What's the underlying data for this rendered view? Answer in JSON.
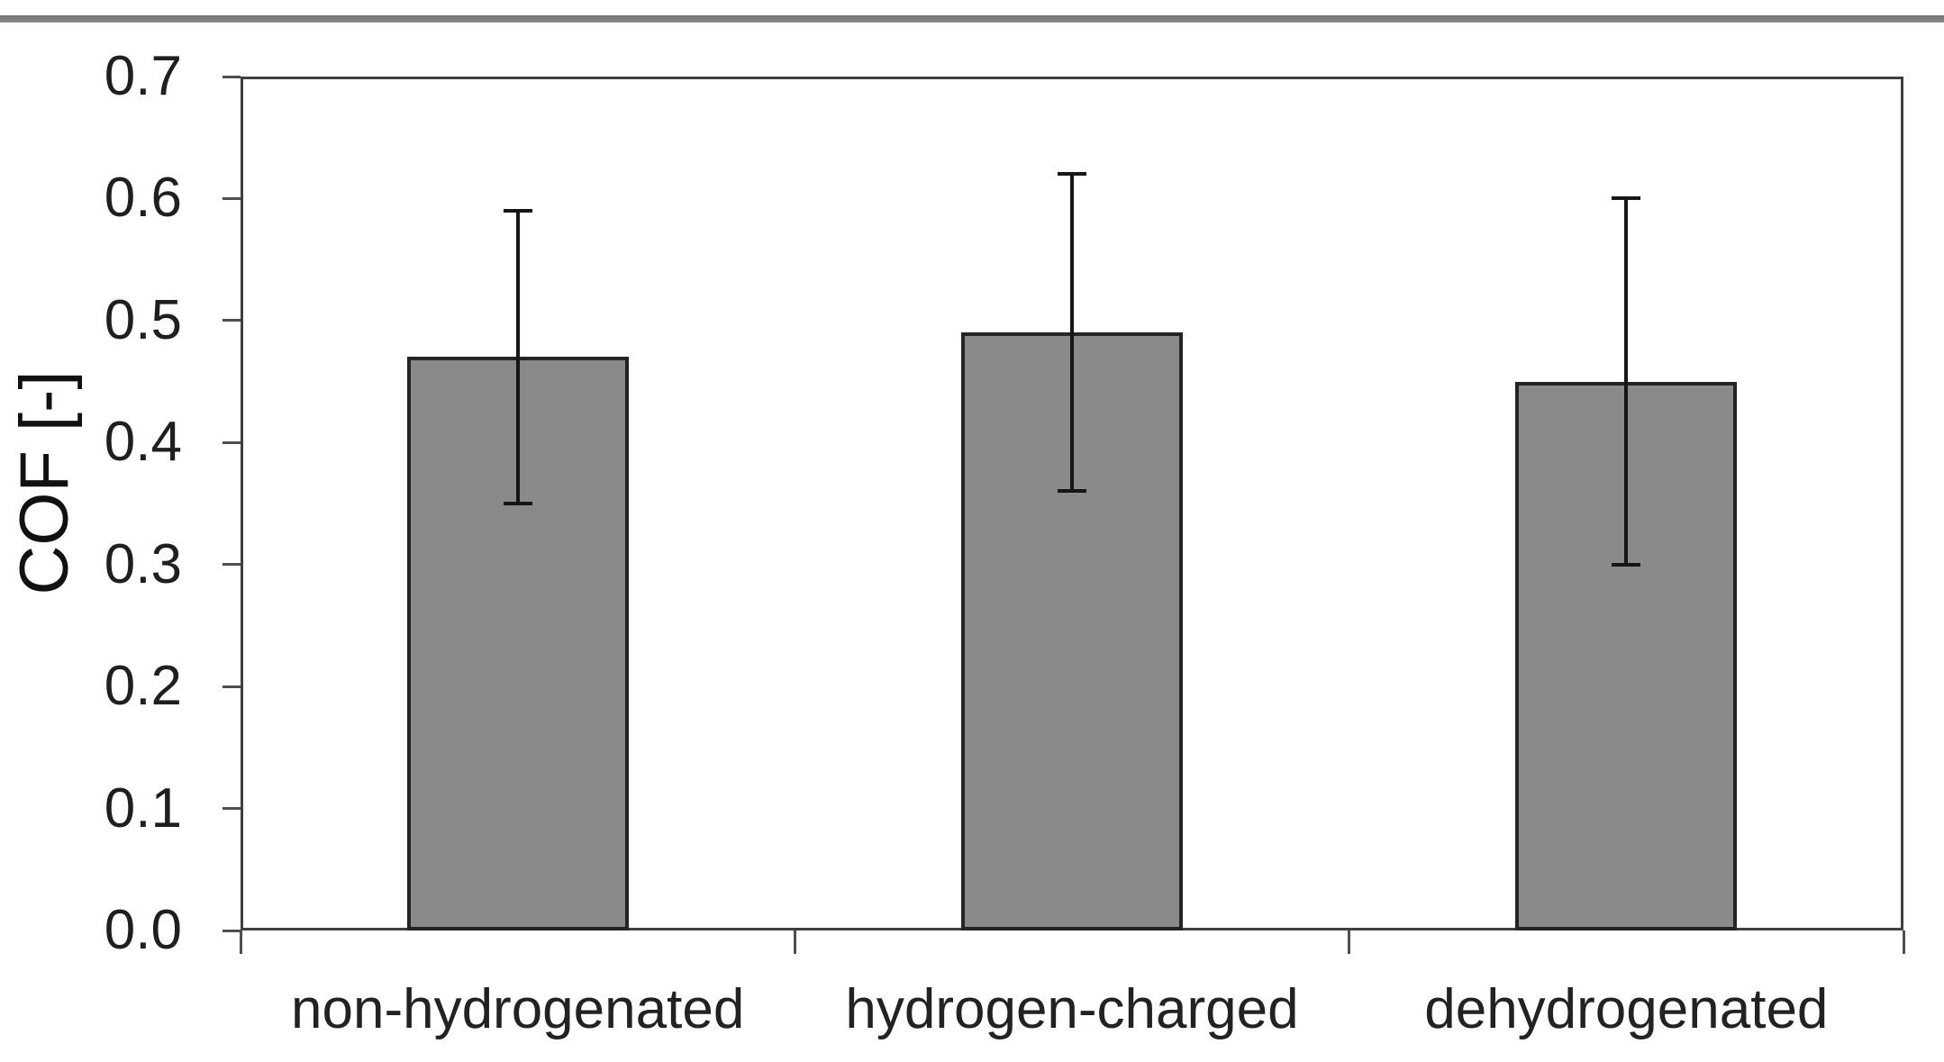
{
  "chart_data": {
    "type": "bar",
    "title": "",
    "xlabel": "",
    "ylabel": "COF [-]",
    "categories": [
      "non-hydrogenated",
      "hydrogen-charged",
      "dehydrogenated"
    ],
    "values": [
      0.47,
      0.49,
      0.45
    ],
    "error_minus": [
      0.12,
      0.13,
      0.15
    ],
    "error_plus": [
      0.12,
      0.13,
      0.15
    ],
    "error_whisker_ranges": [
      [
        0.35,
        0.59
      ],
      [
        0.36,
        0.62
      ],
      [
        0.3,
        0.6
      ]
    ],
    "ylim": [
      0.0,
      0.7
    ],
    "ytick_step": 0.1,
    "ytick_labels": [
      "0.0",
      "0.1",
      "0.2",
      "0.3",
      "0.4",
      "0.5",
      "0.6",
      "0.7"
    ],
    "grid": false,
    "legend": null,
    "bar_fill_color": "#8a8a8a",
    "bar_border_color": "#242424",
    "errorbar_color": "#161616",
    "axis_frame_color": "#3f3f3f",
    "tick_color": "#4f4f4f",
    "text_color": "#1f1f1f",
    "top_rule_color": "#7a7a7a"
  }
}
